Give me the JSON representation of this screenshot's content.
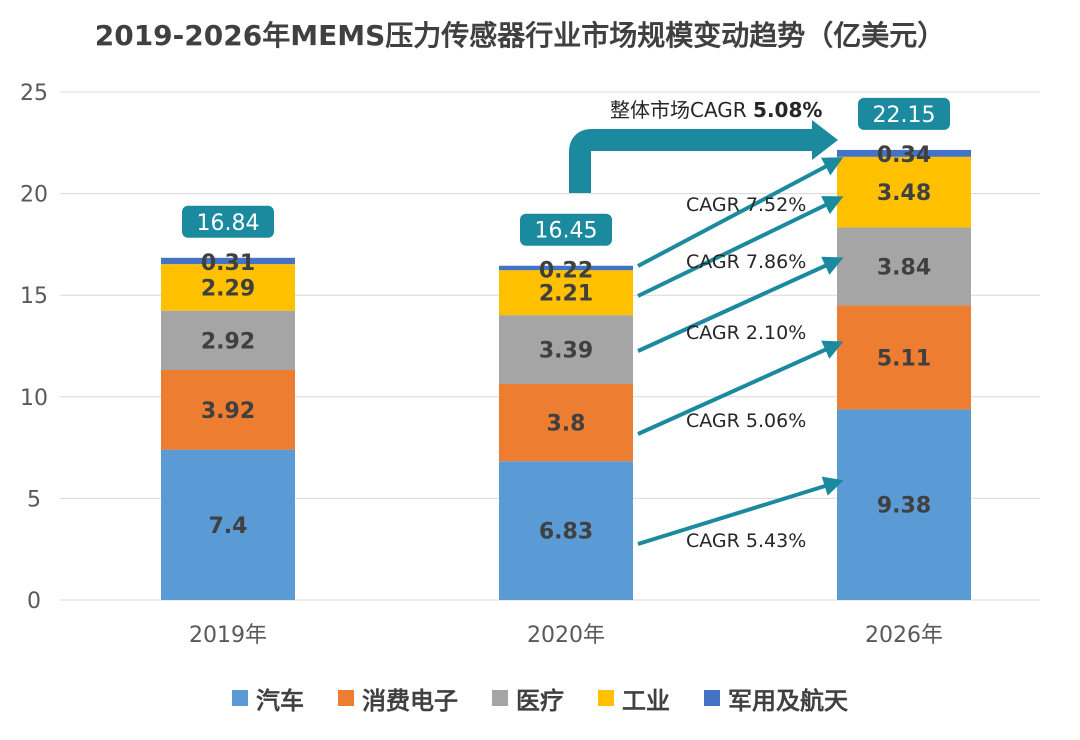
{
  "chart_data": {
    "type": "bar",
    "stacked": true,
    "title": "2019-2026年MEMS压力传感器行业市场规模变动趋势（亿美元）",
    "categories": [
      "2019年",
      "2020年",
      "2026年"
    ],
    "ylim": [
      0,
      25
    ],
    "yticks": [
      0,
      5,
      10,
      15,
      20,
      25
    ],
    "grid": true,
    "legend_position": "bottom",
    "series": [
      {
        "name": "汽车",
        "color": "#5B9BD5",
        "values": [
          7.4,
          6.83,
          9.38
        ],
        "labels": [
          "7.4",
          "6.83",
          "9.38"
        ]
      },
      {
        "name": "消费电子",
        "color": "#ED7D31",
        "values": [
          3.92,
          3.8,
          5.11
        ],
        "labels": [
          "3.92",
          "3.8",
          "5.11"
        ]
      },
      {
        "name": "医疗",
        "color": "#A5A5A5",
        "values": [
          2.92,
          3.39,
          3.84
        ],
        "labels": [
          "2.92",
          "3.39",
          "3.84"
        ]
      },
      {
        "name": "工业",
        "color": "#FFC000",
        "values": [
          2.29,
          2.21,
          3.48
        ],
        "labels": [
          "2.29",
          "2.21",
          "3.48"
        ]
      },
      {
        "name": "军用及航天",
        "color": "#4472C4",
        "values": [
          0.31,
          0.22,
          0.34
        ],
        "labels": [
          "0.31",
          "0.22",
          "0.34"
        ]
      }
    ],
    "totals": [
      "16.84",
      "16.45",
      "22.15"
    ],
    "annotations": {
      "overall_prefix": "整体市场CAGR ",
      "overall_value": "5.08%",
      "segment_cagr": [
        {
          "series": "汽车",
          "label": "CAGR 5.43%"
        },
        {
          "series": "消费电子",
          "label": "CAGR 5.06%"
        },
        {
          "series": "医疗",
          "label": "CAGR 2.10%"
        },
        {
          "series": "工业",
          "label": "CAGR 7.86%"
        },
        {
          "series": "军用及航天",
          "label": "CAGR 7.52%"
        }
      ]
    }
  }
}
